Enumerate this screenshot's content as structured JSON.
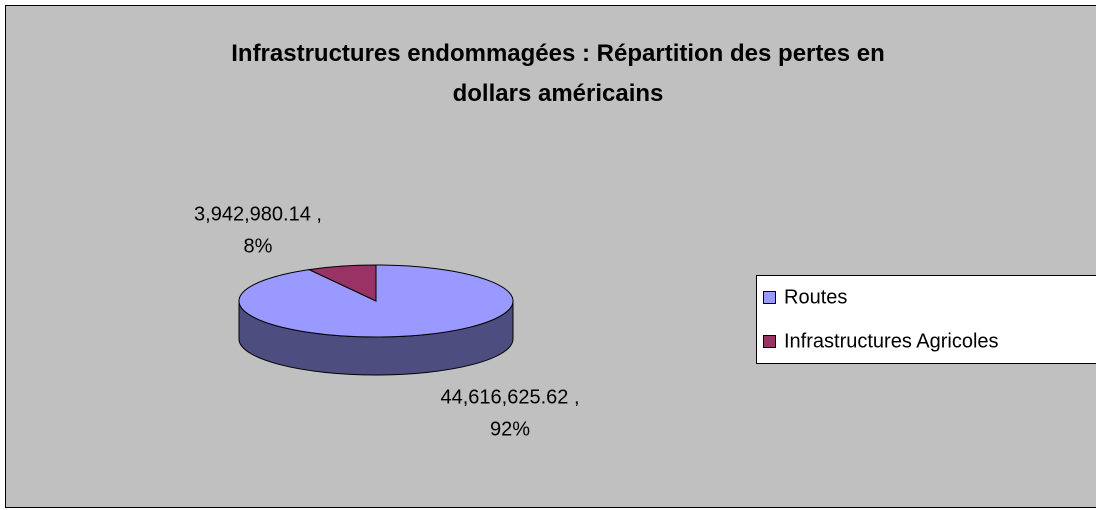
{
  "chart_data": {
    "type": "pie",
    "title": "Infrastructures endommagées : Répartition des pertes en dollars américains",
    "categories": [
      "Routes",
      "Infrastructures Agricoles"
    ],
    "values": [
      44616625.62,
      3942980.14
    ],
    "value_labels": [
      "44,616,625.62 ,",
      "3,942,980.14 ,"
    ],
    "percents": [
      92,
      8
    ],
    "percent_labels": [
      "92%",
      "8%"
    ],
    "colors": [
      "#9999ff",
      "#993366"
    ],
    "legend": "right"
  }
}
